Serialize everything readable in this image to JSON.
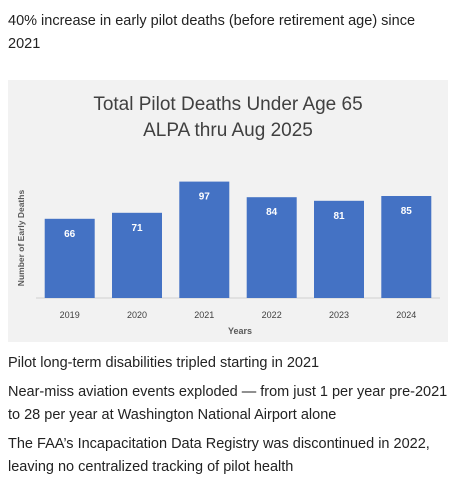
{
  "intro_text": "40% increase in early pilot deaths (before retirement age) since 2021",
  "chart_data": {
    "type": "bar",
    "title": "Total Pilot Deaths Under Age 65",
    "subtitle": "ALPA thru Aug 2025",
    "xlabel": "Years",
    "ylabel": "Number of Early Deaths",
    "categories": [
      "2019",
      "2020",
      "2021",
      "2022",
      "2023",
      "2024"
    ],
    "values": [
      66,
      71,
      97,
      84,
      81,
      85
    ],
    "ylim": [
      0,
      120
    ],
    "grid": false,
    "legend": "none",
    "data_labels": true,
    "bar_color": "#4472c4",
    "background_color": "#f2f2f2"
  },
  "notes": [
    "Pilot long-term disabilities tripled starting in 2021",
    "Near-miss aviation events exploded — from just 1 per year pre-2021 to 28 per year at Washington National Airport alone",
    "The FAA’s Incapacitation Data Registry was discontinued in 2022, leaving no centralized tracking of pilot health"
  ]
}
